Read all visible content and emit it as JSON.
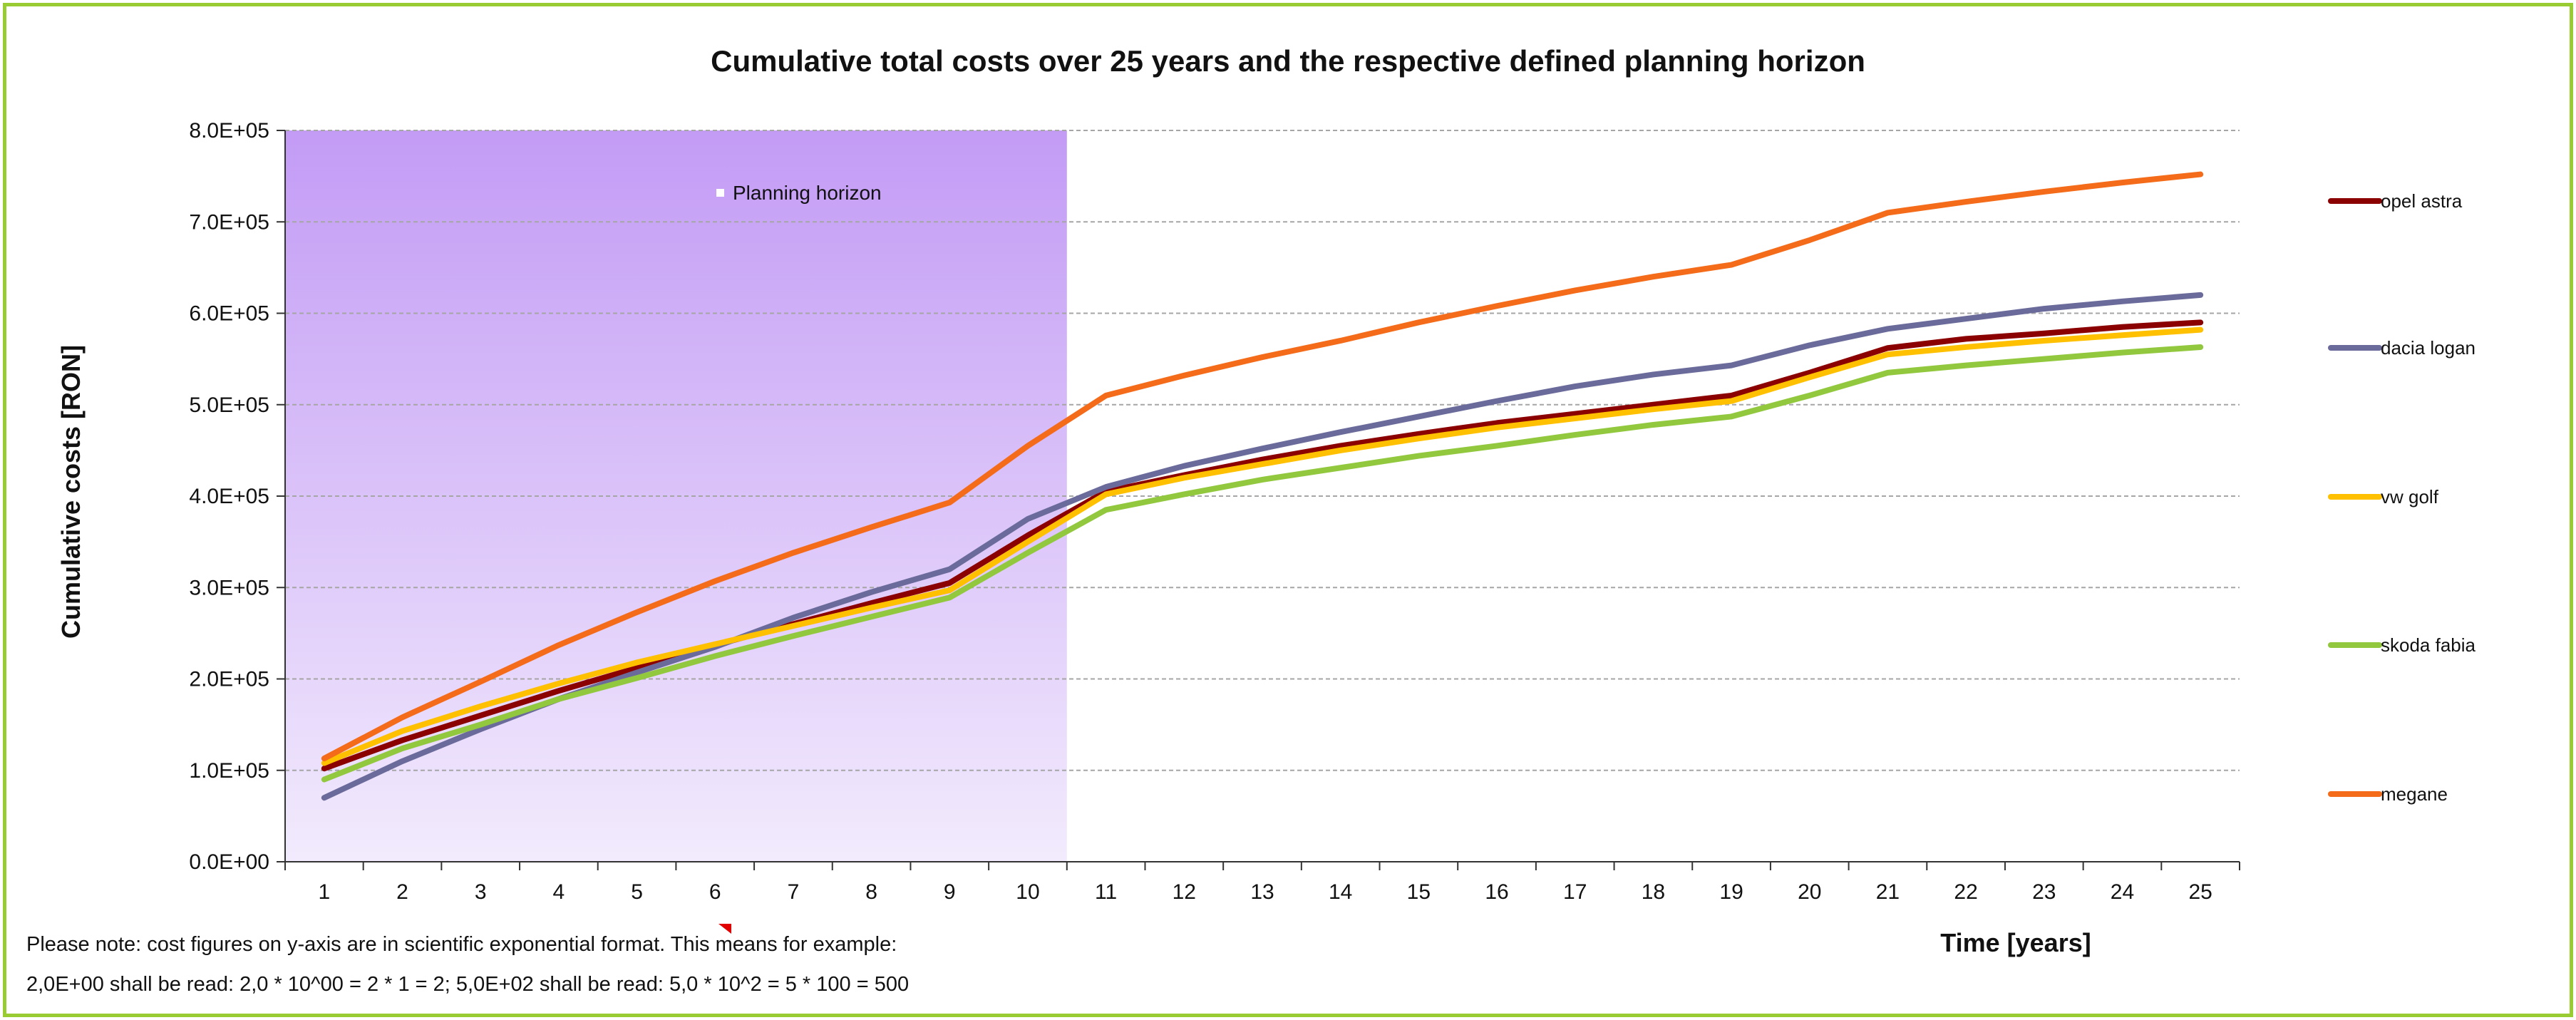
{
  "chart_data": {
    "type": "line",
    "title": "Cumulative total costs over 25 years and the respective defined planning horizon",
    "xlabel": "Time [years]",
    "ylabel": "Cumulative costs [RON]",
    "x": [
      1,
      2,
      3,
      4,
      5,
      6,
      7,
      8,
      9,
      10,
      11,
      12,
      13,
      14,
      15,
      16,
      17,
      18,
      19,
      20,
      21,
      22,
      23,
      24,
      25
    ],
    "ylim": [
      0,
      800000
    ],
    "yticks": [
      {
        "value": 0,
        "label": "0.0E+00"
      },
      {
        "value": 100000,
        "label": "1.0E+05"
      },
      {
        "value": 200000,
        "label": "2.0E+05"
      },
      {
        "value": 300000,
        "label": "3.0E+05"
      },
      {
        "value": 400000,
        "label": "4.0E+05"
      },
      {
        "value": 500000,
        "label": "5.0E+05"
      },
      {
        "value": 600000,
        "label": "6.0E+05"
      },
      {
        "value": 700000,
        "label": "7.0E+05"
      },
      {
        "value": 800000,
        "label": "8.0E+05"
      }
    ],
    "grid": true,
    "legend_position": "right",
    "planning_horizon": {
      "label": "Planning horizon",
      "from": 1,
      "to": 10
    },
    "series": [
      {
        "name": "opel astra",
        "color": "#8b0000",
        "values": [
          102000,
          133000,
          160000,
          187000,
          212000,
          237000,
          260000,
          283000,
          305000,
          357000,
          405000,
          423000,
          440000,
          455000,
          468000,
          480000,
          490000,
          500000,
          510000,
          535000,
          562000,
          572000,
          578000,
          585000,
          590000
        ]
      },
      {
        "name": "dacia logan",
        "color": "#6b6b9b",
        "values": [
          70000,
          110000,
          145000,
          178000,
          207000,
          235000,
          267000,
          295000,
          320000,
          375000,
          410000,
          433000,
          452000,
          470000,
          487000,
          504000,
          520000,
          533000,
          543000,
          565000,
          583000,
          594000,
          605000,
          613000,
          620000
        ]
      },
      {
        "name": "vw golf",
        "color": "#ffc000",
        "values": [
          108000,
          143000,
          170000,
          195000,
          218000,
          238000,
          258000,
          278000,
          297000,
          350000,
          402000,
          420000,
          435000,
          450000,
          463000,
          475000,
          485000,
          495000,
          504000,
          530000,
          555000,
          563000,
          570000,
          576000,
          582000
        ]
      },
      {
        "name": "skoda fabia",
        "color": "#92c83e",
        "values": [
          90000,
          124000,
          150000,
          178000,
          201000,
          225000,
          247000,
          268000,
          289000,
          338000,
          385000,
          402000,
          418000,
          431000,
          444000,
          455000,
          467000,
          478000,
          487000,
          510000,
          535000,
          543000,
          550000,
          557000,
          563000
        ]
      },
      {
        "name": "megane",
        "color": "#f46b1a",
        "values": [
          113000,
          158000,
          197000,
          237000,
          273000,
          307000,
          338000,
          366000,
          393000,
          455000,
          510000,
          532000,
          552000,
          570000,
          590000,
          608000,
          625000,
          640000,
          653000,
          680000,
          710000,
          722000,
          733000,
          743000,
          752000
        ]
      }
    ]
  },
  "note": {
    "line1": "Please note: cost figures on y-axis are in scientific exponential format. This means for example:",
    "line2": "2,0E+00 shall be read: 2,0 * 10^00 = 2 * 1 = 2;  5,0E+02 shall be read: 5,0 * 10^2 = 5 * 100 = 500"
  }
}
